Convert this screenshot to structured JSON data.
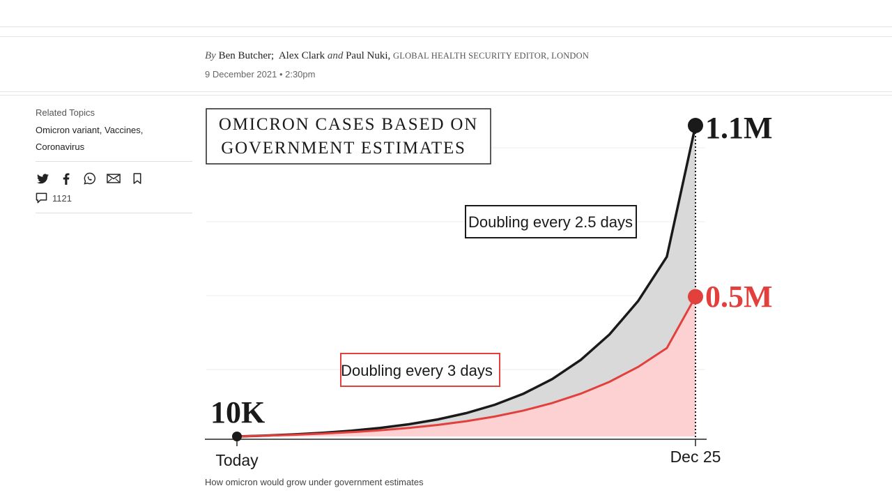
{
  "byline": {
    "by": "By",
    "author1": "Ben Butcher;",
    "author2": "Alex Clark",
    "and": "and",
    "author3": "Paul Nuki,",
    "role": "GLOBAL HEALTH SECURITY EDITOR, LONDON",
    "date": "9 December 2021 • 2:30pm"
  },
  "sidebar": {
    "related_label": "Related Topics",
    "topics": [
      "Omicron variant,",
      "Vaccines,",
      "Coronavirus"
    ],
    "share_icons": [
      "twitter-icon",
      "facebook-icon",
      "whatsapp-icon",
      "email-icon",
      "bookmark-icon"
    ],
    "comment_count": "1121"
  },
  "caption": "How omicron would grow under government estimates",
  "colors": {
    "black_series": "#1a1a1a",
    "red_series": "#e2403d",
    "grey_fill": "#d9d9d9",
    "pink_fill": "#fdd1d1"
  },
  "chart_data": {
    "type": "area",
    "title": "OMICRON CASES BASED ON GOVERNMENT ESTIMATES",
    "x_labels": [
      "Today",
      "Dec 25"
    ],
    "days": 16,
    "series": [
      {
        "name": "Doubling every 2.5 days",
        "color": "#1a1a1a",
        "fill": "#d9d9d9",
        "values": [
          10000,
          13195,
          17411,
          22974,
          30314,
          40000,
          52780,
          69644,
          91896,
          121257,
          160000,
          211121,
          278576,
          367583,
          485029,
          640000,
          1100000
        ]
      },
      {
        "name": "Doubling every 3 days",
        "color": "#e2403d",
        "fill": "#fdd1d1",
        "values": [
          10000,
          12599,
          15874,
          20000,
          25198,
          31748,
          40000,
          50397,
          63496,
          80000,
          100794,
          126992,
          160000,
          201587,
          253984,
          320000,
          500000
        ]
      }
    ],
    "annotations": {
      "start": "10K",
      "end_high": "1.1M",
      "end_low": "0.5M"
    },
    "grid": true
  }
}
